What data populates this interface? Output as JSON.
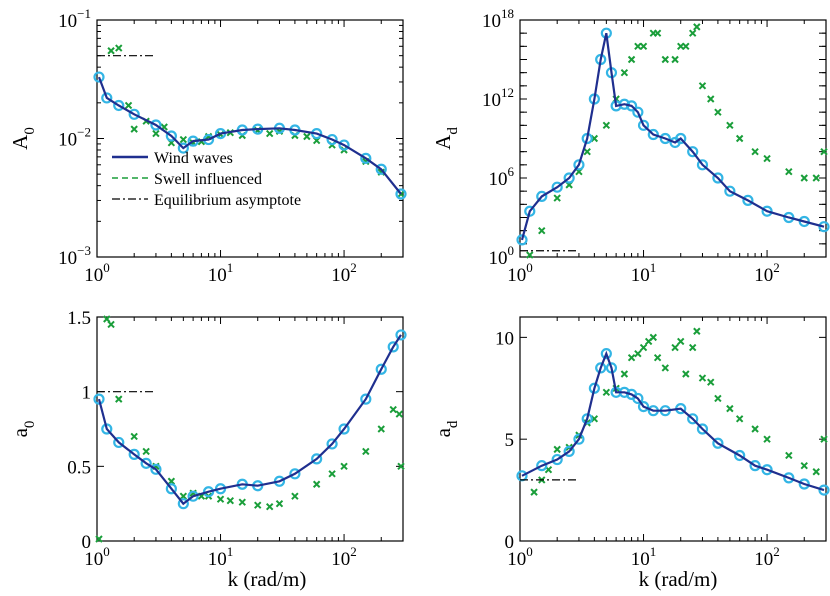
{
  "figure": {
    "xlabel": "k (rad/m)"
  },
  "legend": {
    "entries": [
      "Wind waves",
      "Swell influenced",
      "Equilibrium asymptote"
    ],
    "colors": [
      "#1f2f8f",
      "#1a9e3a",
      "#000000"
    ],
    "styles": [
      "solid",
      "dashed",
      "dashdot"
    ]
  },
  "colors": {
    "wind_markers": "#33b5e5",
    "wind_line": "#1f2f8f",
    "swell": "#1a9e3a",
    "asymptote": "#000000"
  },
  "chart_data": [
    {
      "id": "A0",
      "type": "scatter",
      "ylabel_main": "A",
      "ylabel_sub": "0",
      "xscale": "log",
      "yscale": "log",
      "xlim": [
        1,
        300
      ],
      "ylim": [
        0.001,
        0.1
      ],
      "xticks": [
        {
          "base": "10",
          "exp": "0"
        },
        {
          "base": "10",
          "exp": "1"
        },
        {
          "base": "10",
          "exp": "2"
        }
      ],
      "yticks": [
        {
          "v": 0.001,
          "base": "10",
          "exp": "−3"
        },
        {
          "v": 0.01,
          "base": "10",
          "exp": "−2"
        },
        {
          "v": 0.1,
          "base": "10",
          "exp": "−1"
        }
      ],
      "series": [
        {
          "name": "Wind waves",
          "style": "line",
          "x": [
            1,
            1.2,
            1.5,
            2,
            3,
            4,
            5,
            6,
            8,
            10,
            15,
            20,
            30,
            40,
            60,
            80,
            100,
            150,
            200,
            300
          ],
          "y": [
            0.033,
            0.022,
            0.019,
            0.016,
            0.013,
            0.0105,
            0.0083,
            0.0095,
            0.0098,
            0.011,
            0.0118,
            0.012,
            0.0122,
            0.0118,
            0.011,
            0.0098,
            0.0088,
            0.0068,
            0.0055,
            0.0034
          ]
        },
        {
          "name": "Swell influenced",
          "style": "markers",
          "x": [
            1.3,
            1.5,
            1.8,
            2,
            2.5,
            3,
            3.5,
            4,
            5,
            6,
            7,
            8,
            10,
            12,
            15,
            20,
            25,
            30,
            40,
            50,
            60,
            80,
            100,
            150,
            200,
            300
          ],
          "y": [
            0.055,
            0.058,
            0.019,
            0.012,
            0.014,
            0.011,
            0.0125,
            0.0092,
            0.0098,
            0.0092,
            0.0094,
            0.0104,
            0.0108,
            0.0112,
            0.0106,
            0.0117,
            0.011,
            0.0115,
            0.0106,
            0.0104,
            0.0096,
            0.0088,
            0.008,
            0.0064,
            0.0052,
            0.0034
          ]
        },
        {
          "name": "Equilibrium asymptote",
          "style": "asymptote",
          "x": [
            1,
            3
          ],
          "y": [
            0.05,
            0.05
          ]
        }
      ]
    },
    {
      "id": "Ad",
      "type": "scatter",
      "ylabel_main": "A",
      "ylabel_sub": "d",
      "xscale": "log",
      "yscale": "log",
      "xlim": [
        1,
        300
      ],
      "ylim": [
        1,
        1e+18
      ],
      "xticks": [
        {
          "base": "10",
          "exp": "0"
        },
        {
          "base": "10",
          "exp": "1"
        },
        {
          "base": "10",
          "exp": "2"
        }
      ],
      "yticks": [
        {
          "v": 1,
          "base": "10",
          "exp": "0"
        },
        {
          "v": 1000000.0,
          "base": "10",
          "exp": "6"
        },
        {
          "v": 1000000000000.0,
          "base": "10",
          "exp": "12"
        },
        {
          "v": 1e+18,
          "base": "10",
          "exp": "18"
        }
      ],
      "series": [
        {
          "name": "Wind waves",
          "style": "line",
          "x": [
            1,
            1.2,
            1.5,
            2,
            2.5,
            3,
            3.5,
            4,
            4.5,
            5,
            5.5,
            6,
            7,
            8,
            9,
            10,
            12,
            15,
            18,
            20,
            25,
            30,
            40,
            50,
            70,
            100,
            150,
            200,
            300
          ],
          "y": [
            20,
            3000,
            40000,
            200000,
            1000000,
            10000000.0,
            1000000000.0,
            1000000000000.0,
            1000000000000000.0,
            1e+17,
            100000000000000.0,
            300000000000.0,
            400000000000.0,
            300000000000.0,
            100000000000.0,
            10000000000.0,
            2000000000.0,
            1000000000.0,
            500000000.0,
            1000000000.0,
            100000000.0,
            10000000.0,
            1000000.0,
            100000,
            20000,
            3000,
            1000,
            500,
            200
          ]
        },
        {
          "name": "Swell influenced",
          "style": "markers",
          "x": [
            1.2,
            1.5,
            2,
            2.5,
            3,
            3.5,
            4,
            5,
            6,
            7,
            8,
            9,
            10,
            12,
            13,
            15,
            18,
            20,
            22,
            25,
            27,
            30,
            35,
            40,
            50,
            60,
            80,
            100,
            150,
            200,
            250,
            300
          ],
          "y": [
            1,
            100,
            30000,
            300000,
            3000000,
            100000000.0,
            1000000000.0,
            10000000000.0,
            1000000000000.0,
            100000000000000.0,
            1000000000000000.0,
            1e+16,
            1e+16,
            1e+17,
            1e+17,
            1000000000000000.0,
            1000000000000000.0,
            1e+16,
            1e+16,
            1e+17,
            3e+17,
            10000000000000.0,
            1000000000000.0,
            100000000000.0,
            10000000000.0,
            1000000000.0,
            100000000.0,
            30000000.0,
            3000000.0,
            1000000.0,
            1000000.0,
            100000000.0
          ]
        },
        {
          "name": "Equilibrium asymptote",
          "style": "asymptote",
          "x": [
            1,
            3
          ],
          "y": [
            3,
            3
          ]
        }
      ]
    },
    {
      "id": "a0",
      "type": "scatter",
      "ylabel_main": "a",
      "ylabel_sub": "0",
      "xscale": "log",
      "yscale": "linear",
      "xlim": [
        1,
        300
      ],
      "ylim": [
        0,
        1.5
      ],
      "xticks": [
        {
          "base": "10",
          "exp": "0"
        },
        {
          "base": "10",
          "exp": "1"
        },
        {
          "base": "10",
          "exp": "2"
        }
      ],
      "yticks": [
        {
          "v": 0,
          "label": "0"
        },
        {
          "v": 0.5,
          "label": "0.5"
        },
        {
          "v": 1,
          "label": "1"
        },
        {
          "v": 1.5,
          "label": "1.5"
        }
      ],
      "series": [
        {
          "name": "Wind waves",
          "style": "line",
          "x": [
            1,
            1.2,
            1.5,
            2,
            2.5,
            3,
            4,
            5,
            6,
            8,
            10,
            15,
            20,
            30,
            40,
            60,
            80,
            100,
            150,
            200,
            250,
            300
          ],
          "y": [
            0.95,
            0.75,
            0.66,
            0.58,
            0.52,
            0.48,
            0.35,
            0.25,
            0.3,
            0.33,
            0.35,
            0.38,
            0.37,
            0.4,
            0.45,
            0.55,
            0.65,
            0.75,
            0.95,
            1.15,
            1.3,
            1.38
          ]
        },
        {
          "name": "Swell influenced",
          "style": "markers",
          "x": [
            1,
            1.2,
            1.3,
            1.5,
            2,
            2.5,
            3,
            4,
            5,
            6,
            7,
            8,
            10,
            12,
            15,
            20,
            25,
            30,
            40,
            60,
            80,
            100,
            150,
            200,
            250,
            280,
            300
          ],
          "y": [
            0,
            1.5,
            1.45,
            0.95,
            0.7,
            0.6,
            0.5,
            0.4,
            0.3,
            0.32,
            0.3,
            0.3,
            0.28,
            0.27,
            0.26,
            0.24,
            0.23,
            0.25,
            0.3,
            0.38,
            0.45,
            0.5,
            0.6,
            0.75,
            0.88,
            0.85,
            0.5
          ]
        },
        {
          "name": "Equilibrium asymptote",
          "style": "asymptote",
          "x": [
            1,
            3
          ],
          "y": [
            1,
            1
          ]
        }
      ]
    },
    {
      "id": "ad",
      "type": "scatter",
      "ylabel_main": "a",
      "ylabel_sub": "d",
      "xscale": "log",
      "yscale": "linear",
      "xlim": [
        1,
        300
      ],
      "ylim": [
        0,
        11
      ],
      "xticks": [
        {
          "base": "10",
          "exp": "0"
        },
        {
          "base": "10",
          "exp": "1"
        },
        {
          "base": "10",
          "exp": "2"
        }
      ],
      "yticks": [
        {
          "v": 0,
          "label": "0"
        },
        {
          "v": 5,
          "label": "5"
        },
        {
          "v": 10,
          "label": "10"
        }
      ],
      "series": [
        {
          "name": "Wind waves",
          "style": "line",
          "x": [
            1,
            1.5,
            2,
            2.5,
            3,
            3.5,
            4,
            4.5,
            5,
            5.5,
            6,
            7,
            8,
            9,
            10,
            12,
            15,
            20,
            25,
            30,
            40,
            60,
            80,
            100,
            150,
            200,
            300
          ],
          "y": [
            3.2,
            3.7,
            4.0,
            4.4,
            5.0,
            6.0,
            7.5,
            8.5,
            9.2,
            8.5,
            7.3,
            7.3,
            7.2,
            7.0,
            6.6,
            6.4,
            6.4,
            6.5,
            6.0,
            5.5,
            4.8,
            4.2,
            3.7,
            3.5,
            3.1,
            2.8,
            2.5
          ]
        },
        {
          "name": "Swell influenced",
          "style": "markers",
          "x": [
            1.3,
            1.5,
            1.7,
            2,
            2.5,
            3,
            3.5,
            4,
            5,
            6,
            7,
            8,
            9,
            10,
            11,
            12,
            13,
            15,
            18,
            20,
            22,
            25,
            27,
            30,
            35,
            40,
            50,
            60,
            80,
            100,
            150,
            200,
            250,
            300
          ],
          "y": [
            2.4,
            3.0,
            3.5,
            4.5,
            4.6,
            5.2,
            5.8,
            6.0,
            7.3,
            7.5,
            8.2,
            9.0,
            9.2,
            9.5,
            9.8,
            10.0,
            9.0,
            8.5,
            9.5,
            9.8,
            8.2,
            9.5,
            10.3,
            8.0,
            7.8,
            7.0,
            6.5,
            6.0,
            5.5,
            5.0,
            4.2,
            3.7,
            3.4,
            5.0
          ]
        },
        {
          "name": "Equilibrium asymptote",
          "style": "asymptote",
          "x": [
            1,
            3
          ],
          "y": [
            3,
            3
          ]
        }
      ]
    }
  ]
}
